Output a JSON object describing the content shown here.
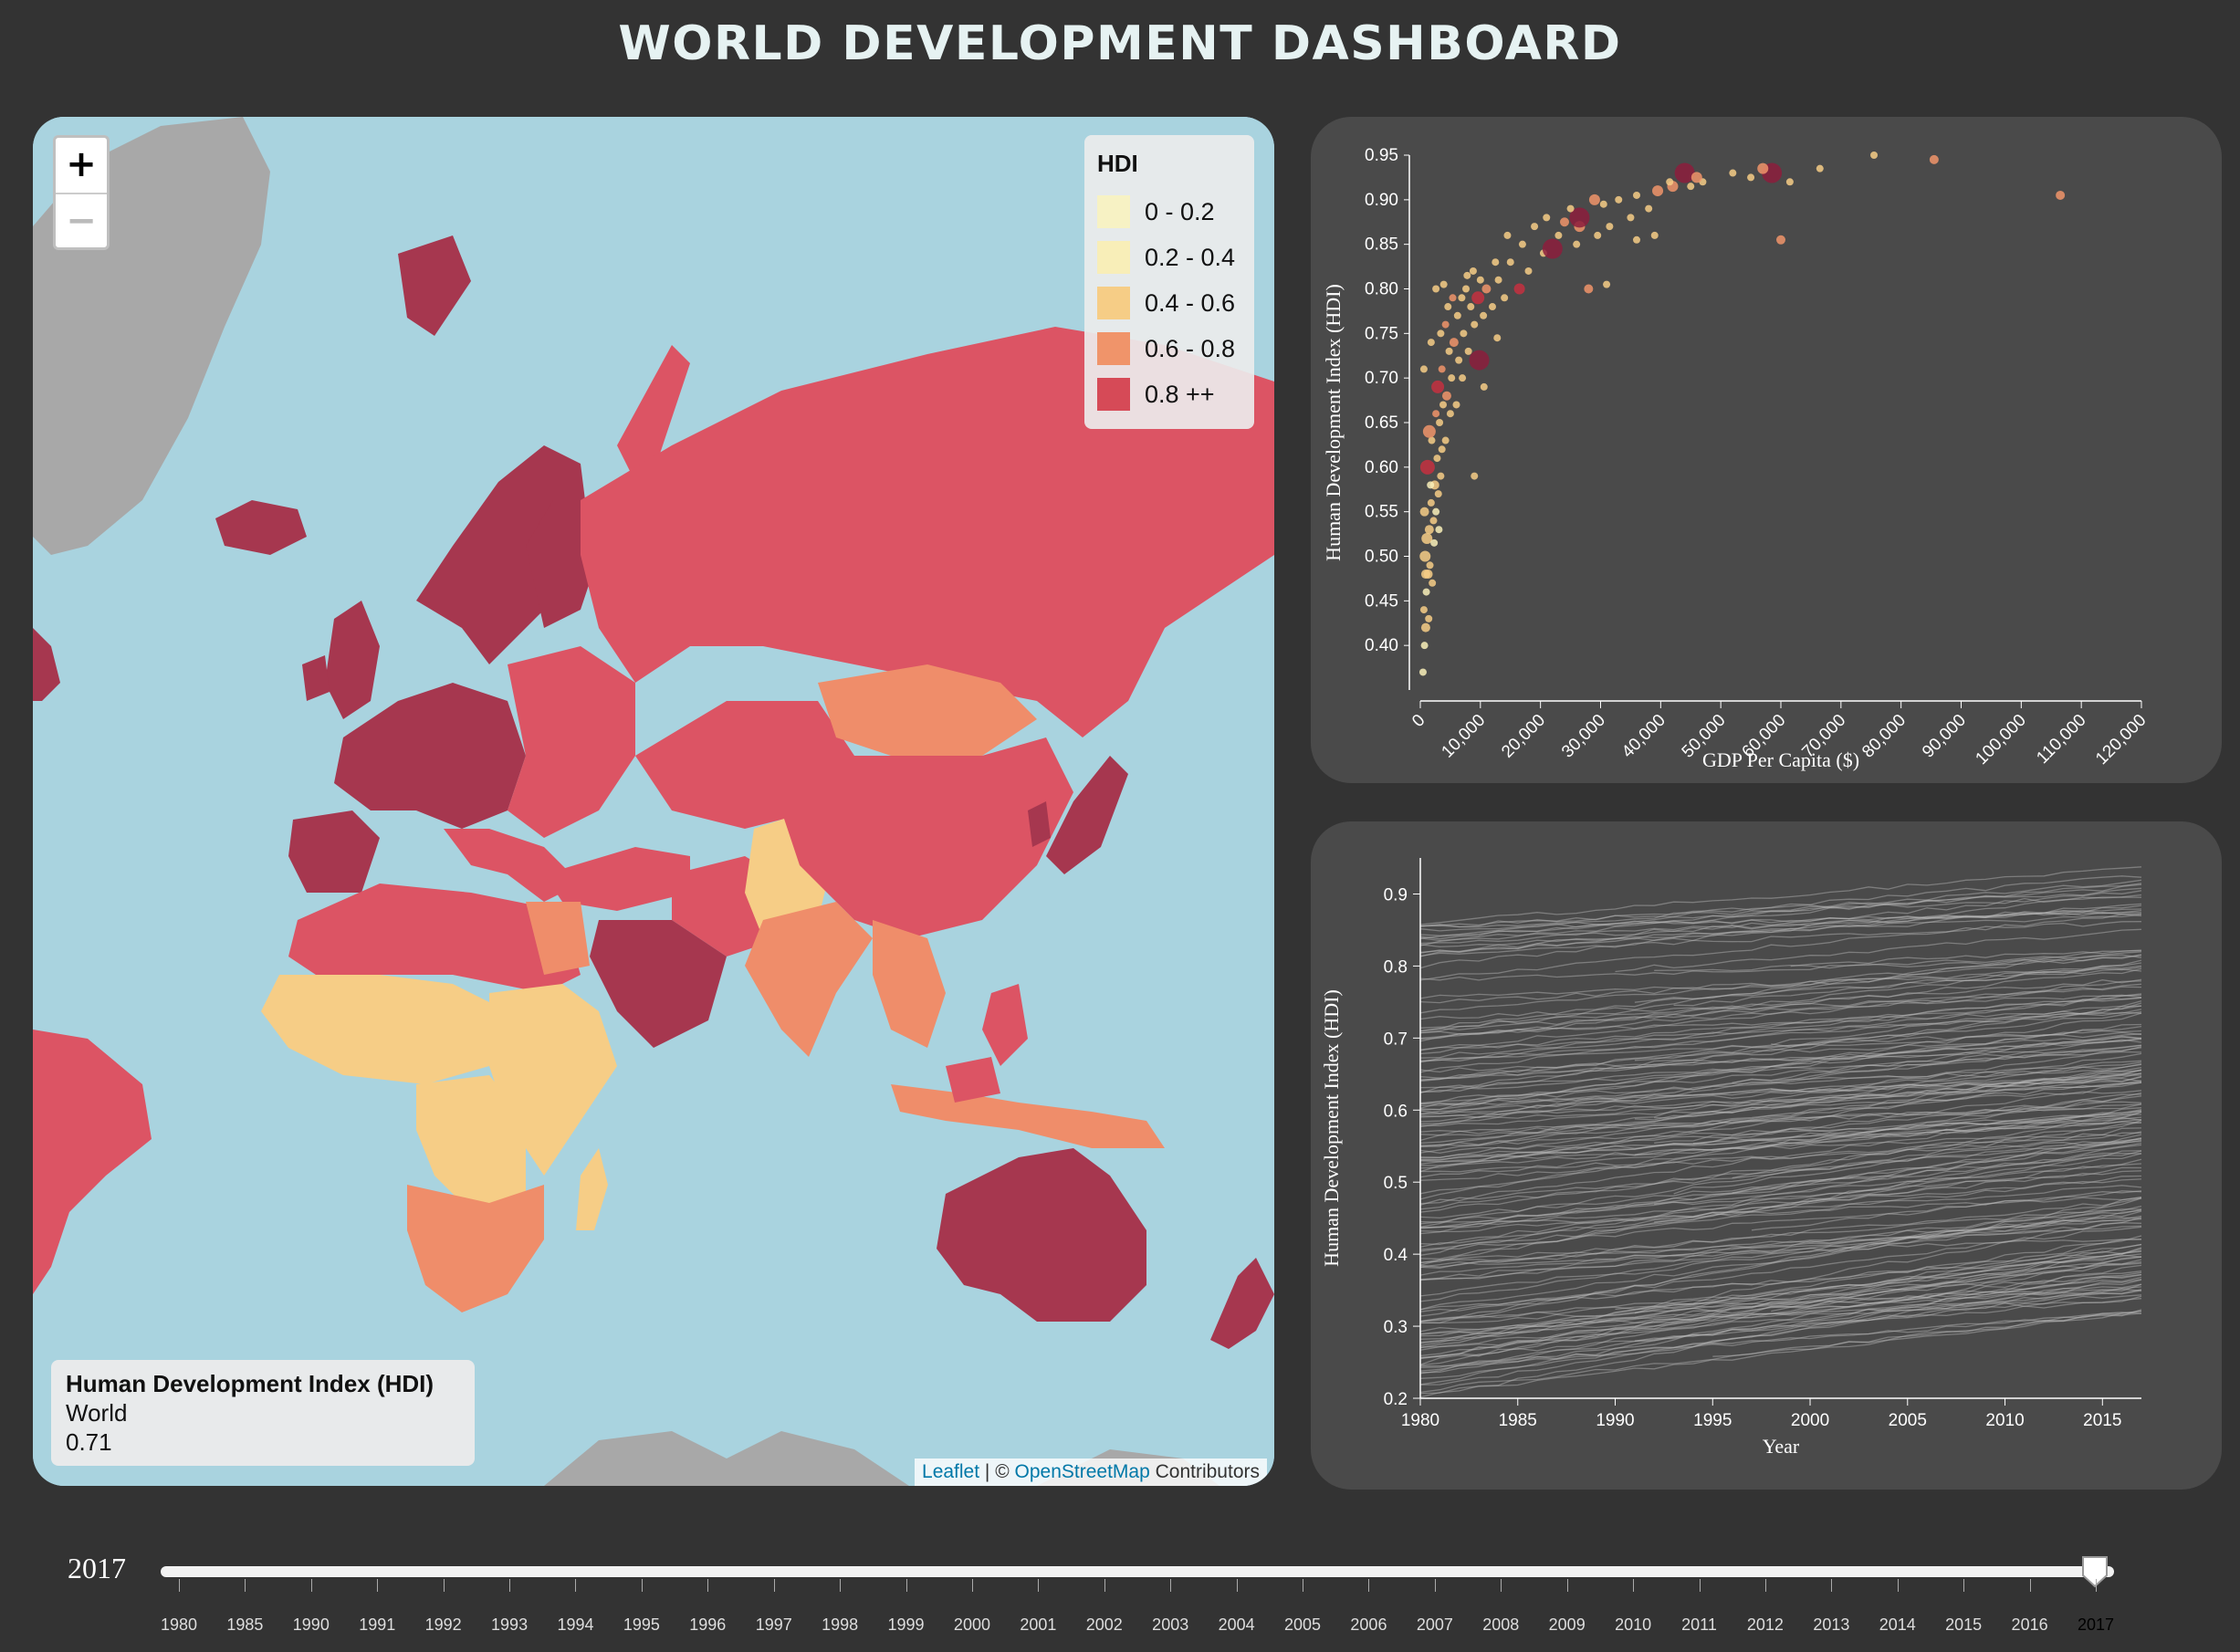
{
  "header": {
    "title": "WORLD DEVELOPMENT DASHBOARD"
  },
  "map": {
    "zoom_in_label": "+",
    "zoom_out_label": "−",
    "legend": {
      "title": "HDI",
      "items": [
        {
          "label": "0 - 0.2",
          "color": "#f7f2c4"
        },
        {
          "label": "0.2 - 0.4",
          "color": "#f8eeb8"
        },
        {
          "label": "0.4 - 0.6",
          "color": "#f6cd86"
        },
        {
          "label": "0.6 - 0.8",
          "color": "#f0946a"
        },
        {
          "label": "0.8 ++",
          "color": "#d64a57"
        }
      ]
    },
    "info": {
      "heading": "Human Development Index (HDI)",
      "region": "World",
      "value": "0.71"
    },
    "attribution": {
      "leaflet": "Leaflet",
      "separator": " | © ",
      "osm": "OpenStreetMap",
      "contributors": " Contributors"
    },
    "colors": {
      "ocean": "#a9d3df",
      "no_data": "#a8a8a8",
      "very_high": "#a6374f",
      "high": "#dc5464",
      "medium": "#ef8d6a",
      "low": "#f6cd86"
    }
  },
  "scatter": {
    "chart_data": {
      "type": "scatter",
      "xlabel": "GDP Per Capita ($)",
      "ylabel": "Human Development Index (HDI)",
      "xlim": [
        0,
        120000
      ],
      "ylim": [
        0.35,
        0.95
      ],
      "x_ticks": [
        "0",
        "10,000",
        "20,000",
        "30,000",
        "40,000",
        "50,000",
        "60,000",
        "70,000",
        "80,000",
        "90,000",
        "100,000",
        "110,000",
        "120,000"
      ],
      "y_ticks": [
        "0.40",
        "0.45",
        "0.50",
        "0.55",
        "0.60",
        "0.65",
        "0.70",
        "0.75",
        "0.80",
        "0.85",
        "0.90",
        "0.95"
      ],
      "points": [
        [
          450,
          0.37,
          "#f8eeb8",
          4
        ],
        [
          700,
          0.4,
          "#f8eeb8",
          4
        ],
        [
          900,
          0.42,
          "#f6cd86",
          5
        ],
        [
          600,
          0.44,
          "#f6cd86",
          4
        ],
        [
          1000,
          0.46,
          "#f8eeb8",
          4
        ],
        [
          1300,
          0.48,
          "#f6cd86",
          5
        ],
        [
          800,
          0.5,
          "#f6cd86",
          6
        ],
        [
          1600,
          0.49,
          "#f6cd86",
          4
        ],
        [
          2000,
          0.47,
          "#f6cd86",
          4
        ],
        [
          1100,
          0.52,
          "#f6cd86",
          6
        ],
        [
          1500,
          0.53,
          "#f6cd86",
          5
        ],
        [
          2200,
          0.54,
          "#f6cd86",
          4
        ],
        [
          1800,
          0.56,
          "#f6cd86",
          4
        ],
        [
          2600,
          0.55,
          "#f8eeb8",
          4
        ],
        [
          3000,
          0.57,
          "#f6cd86",
          4
        ],
        [
          2400,
          0.58,
          "#f6cd86",
          5
        ],
        [
          3400,
          0.59,
          "#f6cd86",
          4
        ],
        [
          1200,
          0.6,
          "#c4303f",
          8
        ],
        [
          2800,
          0.61,
          "#f6cd86",
          4
        ],
        [
          3600,
          0.62,
          "#f6cd86",
          4
        ],
        [
          1900,
          0.63,
          "#f6cd86",
          4
        ],
        [
          4200,
          0.63,
          "#f6cd86",
          4
        ],
        [
          1500,
          0.64,
          "#f0946a",
          7
        ],
        [
          3200,
          0.65,
          "#f6cd86",
          4
        ],
        [
          5000,
          0.66,
          "#f6cd86",
          4
        ],
        [
          2600,
          0.66,
          "#f0946a",
          4
        ],
        [
          3800,
          0.67,
          "#f6cd86",
          4
        ],
        [
          6000,
          0.67,
          "#f6cd86",
          4
        ],
        [
          4400,
          0.68,
          "#f0946a",
          5
        ],
        [
          2900,
          0.69,
          "#c4303f",
          7
        ],
        [
          5200,
          0.7,
          "#f6cd86",
          4
        ],
        [
          7000,
          0.7,
          "#f6cd86",
          4
        ],
        [
          3600,
          0.71,
          "#f0946a",
          4
        ],
        [
          9800,
          0.72,
          "#8c1d3c",
          11
        ],
        [
          6400,
          0.72,
          "#f6cd86",
          4
        ],
        [
          4800,
          0.73,
          "#f6cd86",
          4
        ],
        [
          8000,
          0.73,
          "#f6cd86",
          4
        ],
        [
          5600,
          0.74,
          "#f0946a",
          5
        ],
        [
          3400,
          0.75,
          "#f6cd86",
          4
        ],
        [
          7200,
          0.75,
          "#f6cd86",
          4
        ],
        [
          9000,
          0.76,
          "#f6cd86",
          4
        ],
        [
          4200,
          0.76,
          "#f0946a",
          4
        ],
        [
          6200,
          0.77,
          "#f6cd86",
          4
        ],
        [
          10500,
          0.77,
          "#f6cd86",
          4
        ],
        [
          8400,
          0.78,
          "#f6cd86",
          4
        ],
        [
          12000,
          0.78,
          "#f6cd86",
          4
        ],
        [
          5400,
          0.79,
          "#f0946a",
          4
        ],
        [
          9600,
          0.79,
          "#c4303f",
          7
        ],
        [
          14000,
          0.79,
          "#f6cd86",
          4
        ],
        [
          11000,
          0.8,
          "#f0946a",
          5
        ],
        [
          16500,
          0.8,
          "#c4303f",
          6
        ],
        [
          7600,
          0.8,
          "#f6cd86",
          4
        ],
        [
          13000,
          0.81,
          "#f6cd86",
          4
        ],
        [
          10000,
          0.81,
          "#f6cd86",
          4
        ],
        [
          18000,
          0.82,
          "#f6cd86",
          4
        ],
        [
          8800,
          0.82,
          "#f6cd86",
          4
        ],
        [
          15000,
          0.83,
          "#f6cd86",
          4
        ],
        [
          12500,
          0.83,
          "#f6cd86",
          4
        ],
        [
          20500,
          0.84,
          "#f6cd86",
          4
        ],
        [
          22000,
          0.845,
          "#8c1d3c",
          11
        ],
        [
          17000,
          0.85,
          "#f6cd86",
          4
        ],
        [
          26000,
          0.85,
          "#f6cd86",
          4
        ],
        [
          14500,
          0.86,
          "#f6cd86",
          4
        ],
        [
          23000,
          0.86,
          "#f6cd86",
          4
        ],
        [
          29500,
          0.86,
          "#f6cd86",
          4
        ],
        [
          19000,
          0.87,
          "#f6cd86",
          4
        ],
        [
          26500,
          0.87,
          "#f0946a",
          6
        ],
        [
          31500,
          0.87,
          "#f6cd86",
          4
        ],
        [
          26500,
          0.88,
          "#8c1d3c",
          11
        ],
        [
          21000,
          0.88,
          "#f6cd86",
          4
        ],
        [
          35000,
          0.88,
          "#f6cd86",
          4
        ],
        [
          25000,
          0.89,
          "#f6cd86",
          4
        ],
        [
          38000,
          0.89,
          "#f6cd86",
          4
        ],
        [
          29000,
          0.9,
          "#f0946a",
          6
        ],
        [
          33000,
          0.9,
          "#f6cd86",
          4
        ],
        [
          39500,
          0.91,
          "#f0946a",
          6
        ],
        [
          36000,
          0.905,
          "#f6cd86",
          4
        ],
        [
          42000,
          0.915,
          "#f0946a",
          6
        ],
        [
          45000,
          0.915,
          "#f6cd86",
          4
        ],
        [
          47000,
          0.92,
          "#f6cd86",
          4
        ],
        [
          44000,
          0.93,
          "#8c1d3c",
          11
        ],
        [
          46000,
          0.925,
          "#f0946a",
          6
        ],
        [
          41500,
          0.92,
          "#f6cd86",
          4
        ],
        [
          52000,
          0.93,
          "#f6cd86",
          4
        ],
        [
          55000,
          0.925,
          "#f6cd86",
          4
        ],
        [
          58500,
          0.93,
          "#8c1d3c",
          11
        ],
        [
          57000,
          0.935,
          "#f0946a",
          6
        ],
        [
          61500,
          0.92,
          "#f6cd86",
          4
        ],
        [
          66500,
          0.935,
          "#f6cd86",
          4
        ],
        [
          75500,
          0.95,
          "#f6cd86",
          4
        ],
        [
          85500,
          0.945,
          "#f0946a",
          5
        ],
        [
          106500,
          0.905,
          "#f0946a",
          5
        ],
        [
          60000,
          0.855,
          "#f0946a",
          5
        ],
        [
          36000,
          0.855,
          "#f6cd86",
          4
        ],
        [
          39000,
          0.86,
          "#f6cd86",
          4
        ],
        [
          28000,
          0.8,
          "#f0946a",
          5
        ],
        [
          31000,
          0.805,
          "#f6cd86",
          4
        ],
        [
          9000,
          0.59,
          "#f6cd86",
          4
        ],
        [
          2600,
          0.8,
          "#f6cd86",
          4
        ],
        [
          600,
          0.71,
          "#f6cd86",
          4
        ],
        [
          1800,
          0.74,
          "#f6cd86",
          4
        ],
        [
          4600,
          0.78,
          "#f6cd86",
          4
        ],
        [
          6900,
          0.79,
          "#f6cd86",
          4
        ],
        [
          3900,
          0.805,
          "#f6cd86",
          4
        ],
        [
          7800,
          0.815,
          "#f6cd86",
          4
        ],
        [
          24000,
          0.875,
          "#f0946a",
          5
        ],
        [
          30500,
          0.895,
          "#f6cd86",
          4
        ],
        [
          10600,
          0.69,
          "#f6cd86",
          4
        ],
        [
          12800,
          0.745,
          "#f6cd86",
          4
        ],
        [
          700,
          0.55,
          "#f6cd86",
          5
        ],
        [
          900,
          0.48,
          "#f6cd86",
          5
        ],
        [
          1400,
          0.43,
          "#f6cd86",
          4
        ],
        [
          2300,
          0.515,
          "#f8eeb8",
          4
        ],
        [
          3100,
          0.53,
          "#f8eeb8",
          4
        ],
        [
          1700,
          0.58,
          "#f8eeb8",
          4
        ]
      ]
    }
  },
  "lines": {
    "chart_data": {
      "type": "line",
      "xlabel": "Year",
      "ylabel": "Human Development Index (HDI)",
      "xlim": [
        1980,
        2017
      ],
      "ylim": [
        0.2,
        0.95
      ],
      "x_ticks": [
        "1980",
        "1985",
        "1990",
        "1995",
        "2000",
        "2005",
        "2010",
        "2015"
      ],
      "y_ticks": [
        "0.2",
        "0.3",
        "0.4",
        "0.5",
        "0.6",
        "0.7",
        "0.8",
        "0.9"
      ],
      "series_count": 180,
      "start_range": [
        0.2,
        0.86
      ],
      "end_range": [
        0.32,
        0.95
      ]
    }
  },
  "slider": {
    "current_year": "2017",
    "years": [
      "1980",
      "1985",
      "1990",
      "1991",
      "1992",
      "1993",
      "1994",
      "1995",
      "1996",
      "1997",
      "1998",
      "1999",
      "2000",
      "2001",
      "2002",
      "2003",
      "2004",
      "2005",
      "2006",
      "2007",
      "2008",
      "2009",
      "2010",
      "2011",
      "2012",
      "2013",
      "2014",
      "2015",
      "2016",
      "2017"
    ],
    "selected_index": 29
  }
}
